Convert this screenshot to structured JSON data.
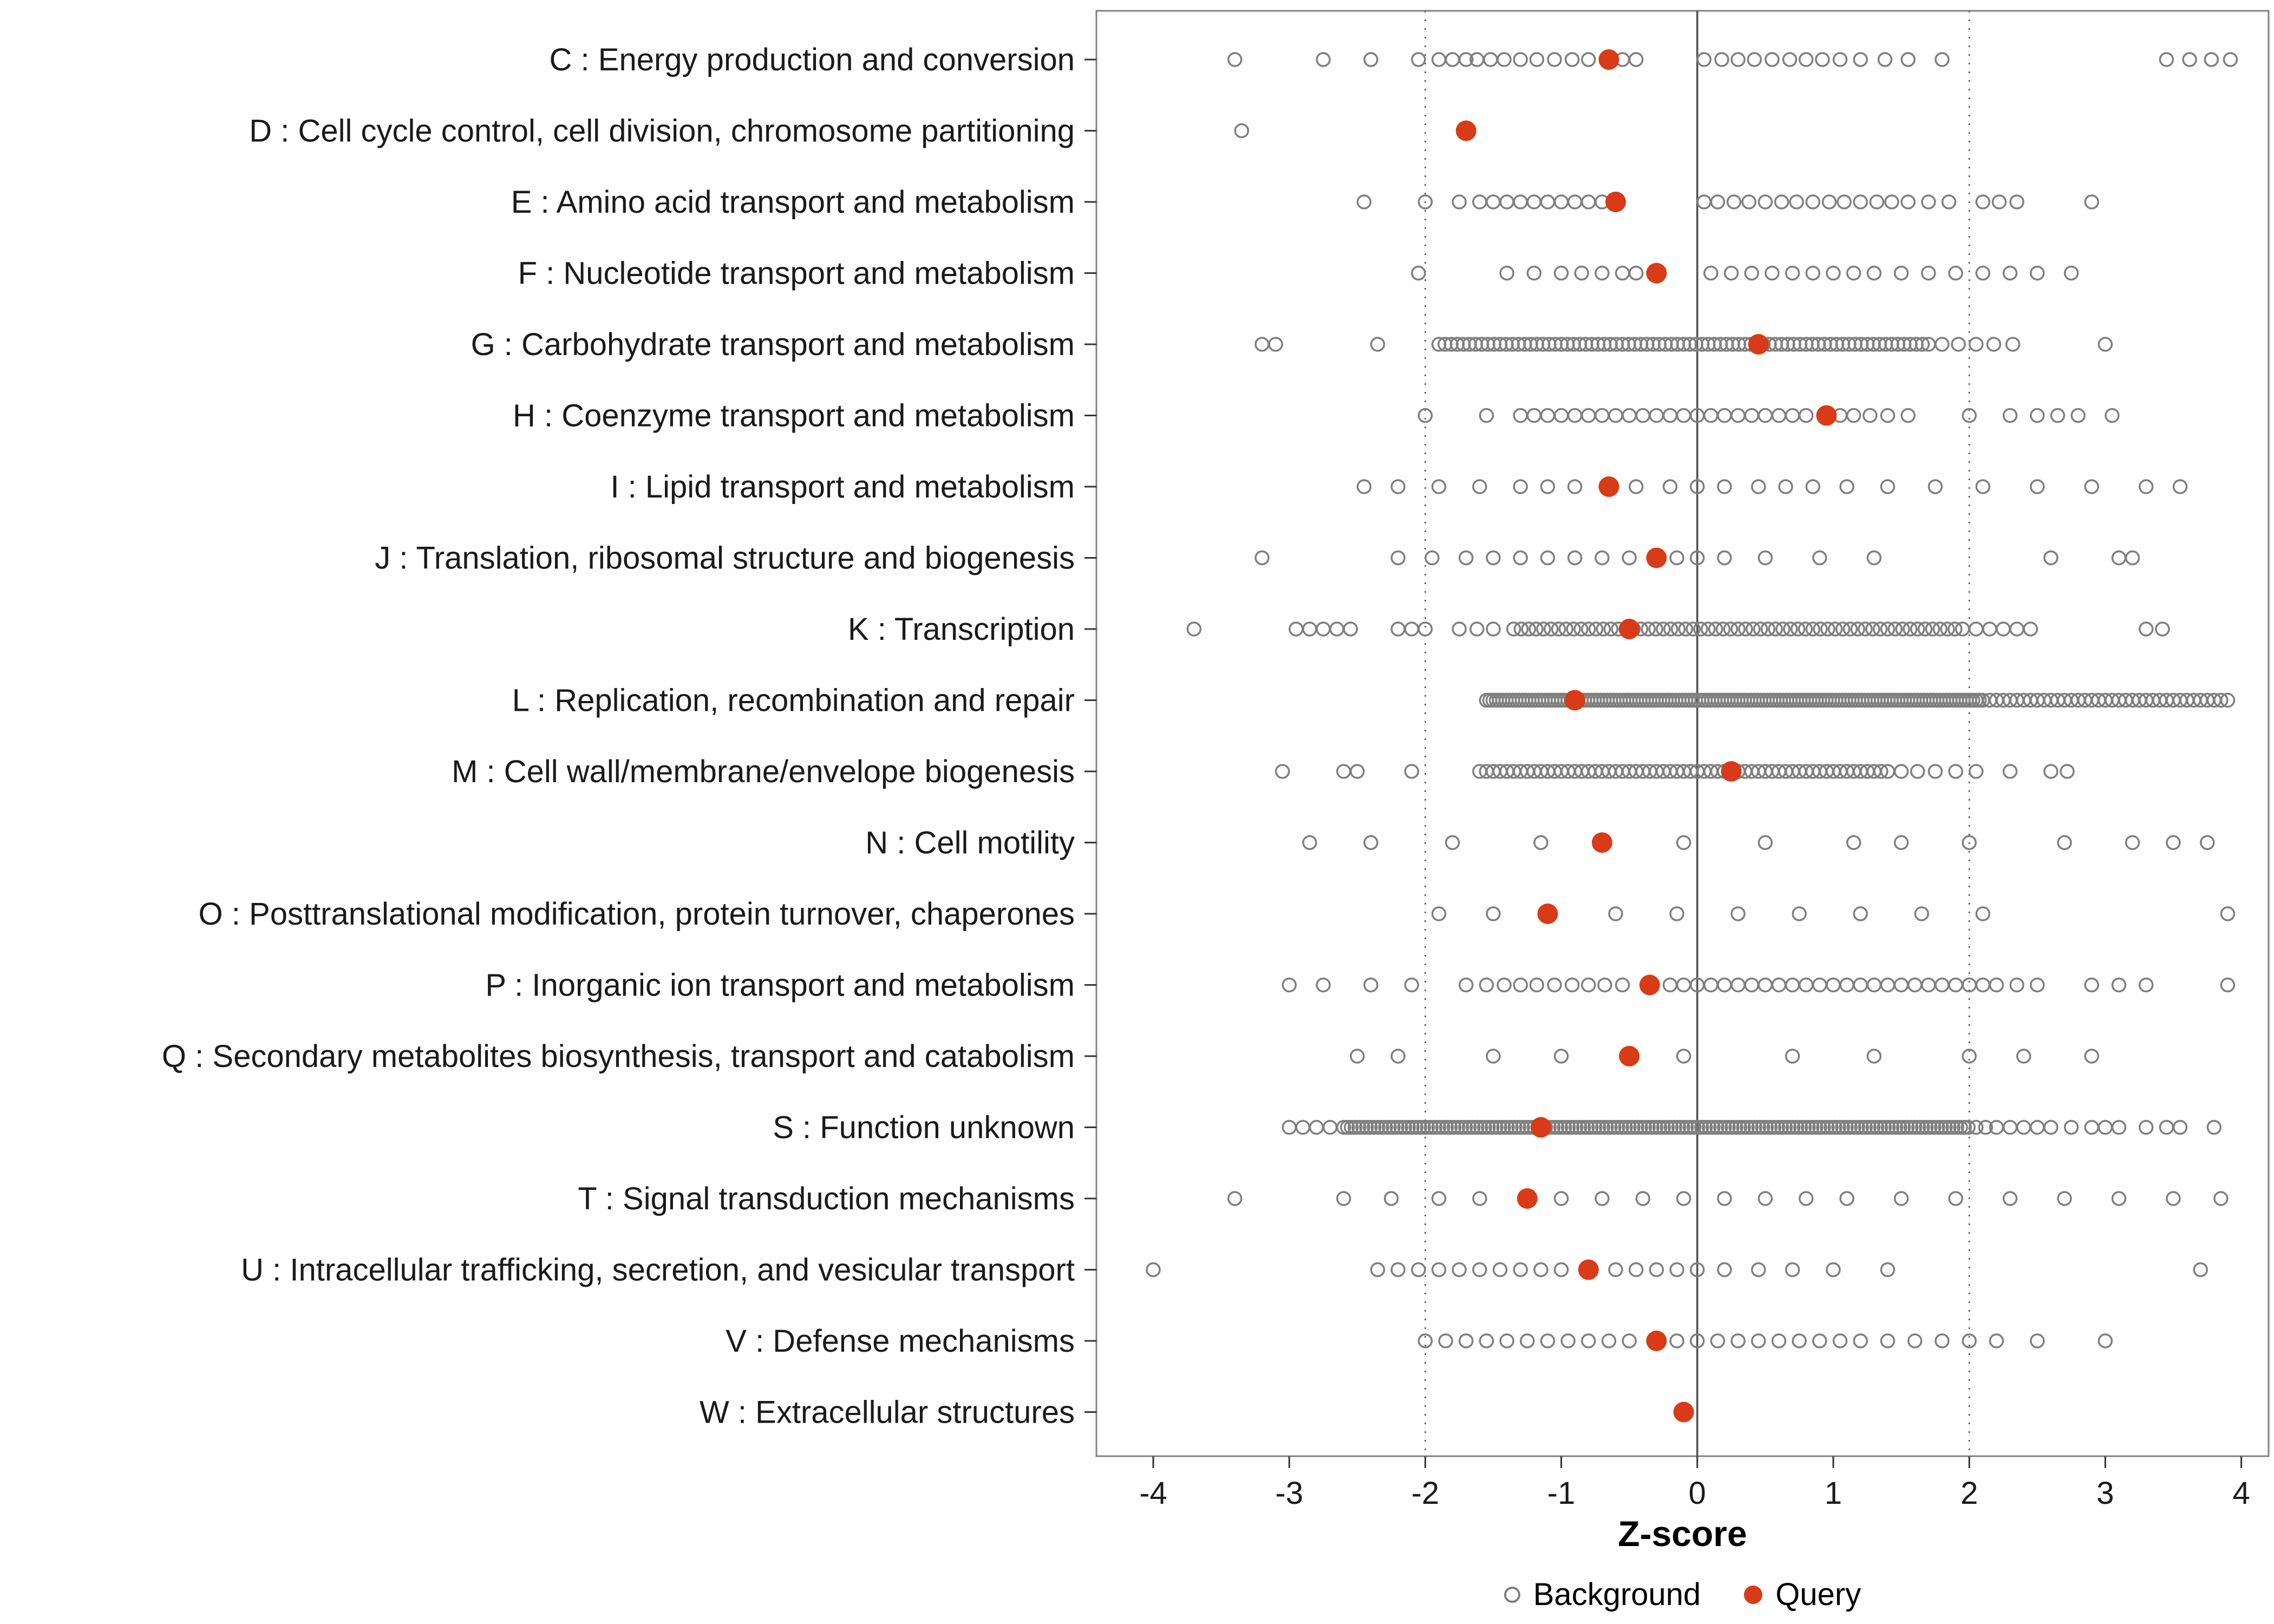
{
  "chart_data": {
    "type": "scatter",
    "subtype": "strip-dotplot",
    "title": "",
    "xlabel": "Z-score",
    "x_ticks": [
      -4,
      -3,
      -2,
      -1,
      0,
      1,
      2,
      3,
      4
    ],
    "xlim": [
      -4.4,
      4.2
    ],
    "grid": false,
    "reference_lines": {
      "solid": [
        0
      ],
      "dotted": [
        -2,
        2
      ]
    },
    "legend": {
      "position": "bottom",
      "background": "Background",
      "query": "Query"
    },
    "colors": {
      "query": "#D93A17",
      "background_stroke": "#7F7F7F",
      "refline_solid": "#4D4D4D",
      "refline_dotted": "#666666",
      "panel_border": "#808080",
      "tick": "#333333",
      "text": "#1A1A1A"
    },
    "categories": [
      {
        "code": "C",
        "label": "C : Energy production and conversion",
        "query": -0.65,
        "background": [
          -3.4,
          -2.75,
          -2.4,
          -2.05,
          -1.9,
          -1.8,
          -1.7,
          -1.62,
          -1.52,
          -1.42,
          -1.3,
          -1.18,
          -1.05,
          -0.92,
          -0.8,
          -0.55,
          -0.45,
          0.05,
          0.18,
          0.3,
          0.42,
          0.55,
          0.68,
          0.8,
          0.92,
          1.05,
          1.2,
          1.38,
          1.55,
          1.8,
          3.45,
          3.62,
          3.78,
          3.92
        ],
        "background_ranges": []
      },
      {
        "code": "D",
        "label": "D : Cell cycle control, cell division, chromosome partitioning",
        "query": -1.7,
        "background": [
          -3.35
        ],
        "background_ranges": []
      },
      {
        "code": "E",
        "label": "E : Amino acid transport and metabolism",
        "query": -0.6,
        "background": [
          -2.45,
          -2.0,
          -1.75,
          -1.6,
          -1.5,
          -1.4,
          -1.3,
          -1.2,
          -1.1,
          -1.0,
          -0.9,
          -0.8,
          -0.7,
          0.05,
          0.15,
          0.27,
          0.38,
          0.5,
          0.62,
          0.73,
          0.85,
          0.97,
          1.08,
          1.2,
          1.32,
          1.43,
          1.55,
          1.7,
          1.85,
          2.1,
          2.22,
          2.35,
          2.9
        ],
        "background_ranges": []
      },
      {
        "code": "F",
        "label": "F : Nucleotide transport and metabolism",
        "query": -0.3,
        "background": [
          -2.05,
          -1.4,
          -1.2,
          -1.0,
          -0.85,
          -0.7,
          -0.55,
          -0.45,
          0.1,
          0.25,
          0.4,
          0.55,
          0.7,
          0.85,
          1.0,
          1.15,
          1.3,
          1.5,
          1.7,
          1.9,
          2.1,
          2.3,
          2.5,
          2.75
        ],
        "background_ranges": []
      },
      {
        "code": "G",
        "label": "G : Carbohydrate transport and metabolism",
        "query": 0.45,
        "background": [
          -3.2,
          -3.1,
          -2.35,
          1.8,
          1.92,
          2.05,
          2.18,
          2.32,
          3.0
        ],
        "background_ranges": [
          {
            "from": -1.9,
            "to": 1.7,
            "step": 0.045
          }
        ]
      },
      {
        "code": "H",
        "label": "H : Coenzyme transport and metabolism",
        "query": 0.95,
        "background": [
          -2.0,
          -1.55,
          -1.3,
          -1.2,
          -1.1,
          -1.0,
          -0.9,
          -0.8,
          -0.7,
          -0.6,
          -0.5,
          -0.4,
          -0.3,
          -0.2,
          -0.1,
          0.0,
          0.1,
          0.2,
          0.3,
          0.4,
          0.5,
          0.6,
          0.7,
          0.8,
          1.05,
          1.15,
          1.27,
          1.4,
          1.55,
          2.0,
          2.3,
          2.5,
          2.65,
          2.8,
          3.05
        ],
        "background_ranges": []
      },
      {
        "code": "I",
        "label": "I : Lipid transport and metabolism",
        "query": -0.65,
        "background": [
          -2.45,
          -2.2,
          -1.9,
          -1.6,
          -1.3,
          -1.1,
          -0.9,
          -0.45,
          -0.2,
          0.0,
          0.2,
          0.45,
          0.65,
          0.85,
          1.1,
          1.4,
          1.75,
          2.1,
          2.5,
          2.9,
          3.3,
          3.55
        ],
        "background_ranges": []
      },
      {
        "code": "J",
        "label": "J : Translation, ribosomal structure and biogenesis",
        "query": -0.3,
        "background": [
          -3.2,
          -2.2,
          -1.95,
          -1.7,
          -1.5,
          -1.3,
          -1.1,
          -0.9,
          -0.7,
          -0.5,
          -0.15,
          0.0,
          0.2,
          0.5,
          0.9,
          1.3,
          2.6,
          3.1,
          3.2
        ],
        "background_ranges": []
      },
      {
        "code": "K",
        "label": "K : Transcription",
        "query": -0.5,
        "background": [
          -3.7,
          -2.95,
          -2.85,
          -2.75,
          -2.65,
          -2.55,
          -2.2,
          -2.1,
          -2.0,
          -1.75,
          -1.62,
          -1.5,
          2.05,
          2.15,
          2.25,
          2.35,
          2.45,
          3.3,
          3.42
        ],
        "background_ranges": [
          {
            "from": -1.35,
            "to": 1.95,
            "step": 0.055
          }
        ]
      },
      {
        "code": "L",
        "label": "L : Replication, recombination and repair",
        "query": -0.9,
        "background": [],
        "background_ranges": [
          {
            "from": -1.55,
            "to": 2.1,
            "step": 0.024
          },
          {
            "from": 2.15,
            "to": 3.9,
            "step": 0.05
          }
        ]
      },
      {
        "code": "M",
        "label": "M : Cell wall/membrane/envelope biogenesis",
        "query": 0.25,
        "background": [
          -3.05,
          -2.6,
          -2.5,
          -2.1,
          1.5,
          1.62,
          1.75,
          1.9,
          2.05,
          2.3,
          2.6,
          2.72
        ],
        "background_ranges": [
          {
            "from": -1.6,
            "to": 1.4,
            "step": 0.05
          }
        ]
      },
      {
        "code": "N",
        "label": "N : Cell motility",
        "query": -0.7,
        "background": [
          -2.85,
          -2.4,
          -1.8,
          -1.15,
          -0.1,
          0.5,
          1.15,
          1.5,
          2.0,
          2.7,
          3.2,
          3.5,
          3.75
        ],
        "background_ranges": []
      },
      {
        "code": "O",
        "label": "O : Posttranslational modification, protein turnover, chaperones",
        "query": -1.1,
        "background": [
          -1.9,
          -1.5,
          -0.6,
          -0.15,
          0.3,
          0.75,
          1.2,
          1.65,
          2.1,
          3.9
        ],
        "background_ranges": []
      },
      {
        "code": "P",
        "label": "P : Inorganic ion transport and metabolism",
        "query": -0.35,
        "background": [
          -3.0,
          -2.75,
          -2.4,
          -2.1,
          -1.7,
          -1.55,
          -1.42,
          -1.3,
          -1.18,
          -1.05,
          -0.92,
          -0.8,
          -0.68,
          -0.55,
          -0.2,
          -0.1,
          0.0,
          0.1,
          0.2,
          0.3,
          0.4,
          0.5,
          0.6,
          0.7,
          0.8,
          0.9,
          1.0,
          1.1,
          1.2,
          1.3,
          1.4,
          1.5,
          1.6,
          1.7,
          1.8,
          1.9,
          2.0,
          2.1,
          2.2,
          2.35,
          2.5,
          2.9,
          3.1,
          3.3,
          3.9
        ],
        "background_ranges": []
      },
      {
        "code": "Q",
        "label": "Q : Secondary metabolites biosynthesis, transport and catabolism",
        "query": -0.5,
        "background": [
          -2.5,
          -2.2,
          -1.5,
          -1.0,
          -0.1,
          0.7,
          1.3,
          2.0,
          2.4,
          2.9
        ],
        "background_ranges": []
      },
      {
        "code": "S",
        "label": "S : Function unknown",
        "query": -1.15,
        "background": [
          -3.0,
          -2.9,
          -2.8,
          -2.7,
          2.05,
          2.12,
          2.2,
          2.3,
          2.4,
          2.5,
          2.6,
          2.75,
          2.9,
          3.0,
          3.1,
          3.3,
          3.45,
          3.55,
          3.8
        ],
        "background_ranges": [
          {
            "from": -2.6,
            "to": 2.0,
            "step": 0.028
          }
        ]
      },
      {
        "code": "T",
        "label": "T : Signal transduction mechanisms",
        "query": -1.25,
        "background": [
          -3.4,
          -2.6,
          -2.25,
          -1.9,
          -1.6,
          -1.0,
          -0.7,
          -0.4,
          -0.1,
          0.2,
          0.5,
          0.8,
          1.1,
          1.5,
          1.9,
          2.3,
          2.7,
          3.1,
          3.5,
          3.85
        ],
        "background_ranges": []
      },
      {
        "code": "U",
        "label": "U : Intracellular trafficking, secretion, and vesicular transport",
        "query": -0.8,
        "background": [
          -4.0,
          -2.35,
          -2.2,
          -2.05,
          -1.9,
          -1.75,
          -1.6,
          -1.45,
          -1.3,
          -1.15,
          -1.0,
          -0.6,
          -0.45,
          -0.3,
          -0.15,
          0.0,
          0.2,
          0.45,
          0.7,
          1.0,
          1.4,
          3.7
        ],
        "background_ranges": []
      },
      {
        "code": "V",
        "label": "V : Defense mechanisms",
        "query": -0.3,
        "background": [
          -2.0,
          -1.85,
          -1.7,
          -1.55,
          -1.4,
          -1.25,
          -1.1,
          -0.95,
          -0.8,
          -0.65,
          -0.5,
          -0.15,
          0.0,
          0.15,
          0.3,
          0.45,
          0.6,
          0.75,
          0.9,
          1.05,
          1.2,
          1.4,
          1.6,
          1.8,
          2.0,
          2.2,
          2.5,
          3.0
        ],
        "background_ranges": []
      },
      {
        "code": "W",
        "label": "W : Extracellular structures",
        "query": -0.1,
        "background": [],
        "background_ranges": []
      }
    ]
  }
}
